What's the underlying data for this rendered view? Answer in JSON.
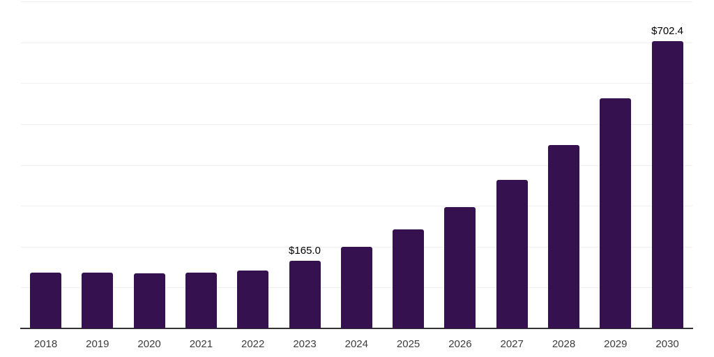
{
  "chart_data": {
    "type": "bar",
    "title": "",
    "xlabel": "",
    "ylabel": "",
    "categories": [
      "2018",
      "2019",
      "2020",
      "2021",
      "2022",
      "2023",
      "2024",
      "2025",
      "2026",
      "2027",
      "2028",
      "2029",
      "2030"
    ],
    "values": [
      137,
      137,
      135,
      137,
      142,
      165.0,
      199,
      242,
      296,
      364,
      449,
      563,
      702.4
    ],
    "value_labels": [
      "",
      "",
      "",
      "",
      "",
      "$165.0",
      "",
      "",
      "",
      "",
      "",
      "",
      "$702.4"
    ],
    "ylim": [
      0,
      800
    ],
    "grid_step": 100,
    "grid": true,
    "legend": "none",
    "colors": {
      "bar": "#35114F",
      "grid": "#f0f0f0",
      "axis": "#333333",
      "value_label": "#000000",
      "tick_label": "#3c3c3c",
      "background": "#ffffff"
    }
  }
}
